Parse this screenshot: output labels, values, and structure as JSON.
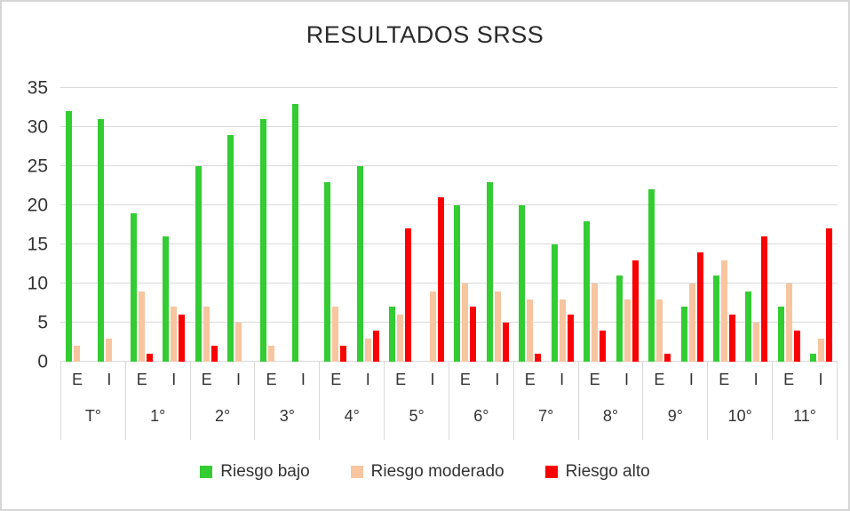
{
  "chart_data": {
    "type": "bar",
    "title": "RESULTADOS SRSS",
    "ylim": [
      0,
      35
    ],
    "y_ticks": [
      0,
      5,
      10,
      15,
      20,
      25,
      30,
      35
    ],
    "grid": "horizontal",
    "legend_position": "bottom",
    "groups": [
      "T°",
      "1°",
      "2°",
      "3°",
      "4°",
      "5°",
      "6°",
      "7°",
      "8°",
      "9°",
      "10°",
      "11°"
    ],
    "subgroups": [
      "E",
      "I"
    ],
    "series": [
      {
        "name": "Riesgo bajo",
        "color": "#33cc33",
        "values": [
          [
            32,
            31
          ],
          [
            19,
            16
          ],
          [
            25,
            29
          ],
          [
            31,
            33
          ],
          [
            23,
            25
          ],
          [
            7,
            0
          ],
          [
            20,
            23
          ],
          [
            20,
            15
          ],
          [
            18,
            11
          ],
          [
            22,
            7
          ],
          [
            11,
            9
          ],
          [
            7,
            1
          ]
        ]
      },
      {
        "name": "Riesgo moderado",
        "color": "#f7c59f",
        "values": [
          [
            2,
            3
          ],
          [
            9,
            7
          ],
          [
            7,
            5
          ],
          [
            2,
            0
          ],
          [
            7,
            3
          ],
          [
            6,
            9
          ],
          [
            10,
            9
          ],
          [
            8,
            8
          ],
          [
            10,
            8
          ],
          [
            8,
            10
          ],
          [
            13,
            5
          ],
          [
            10,
            3
          ]
        ]
      },
      {
        "name": "Riesgo alto",
        "color": "#fb0000",
        "values": [
          [
            0,
            0
          ],
          [
            1,
            6
          ],
          [
            2,
            0
          ],
          [
            0,
            0
          ],
          [
            2,
            4
          ],
          [
            17,
            21
          ],
          [
            7,
            5
          ],
          [
            1,
            6
          ],
          [
            4,
            13
          ],
          [
            1,
            14
          ],
          [
            6,
            16
          ],
          [
            4,
            17
          ]
        ]
      }
    ],
    "colors": {
      "grid": "#d9d9d9",
      "text": "#333333",
      "title": "#2b2b2b",
      "frame_border": "#d6d6d6"
    }
  }
}
